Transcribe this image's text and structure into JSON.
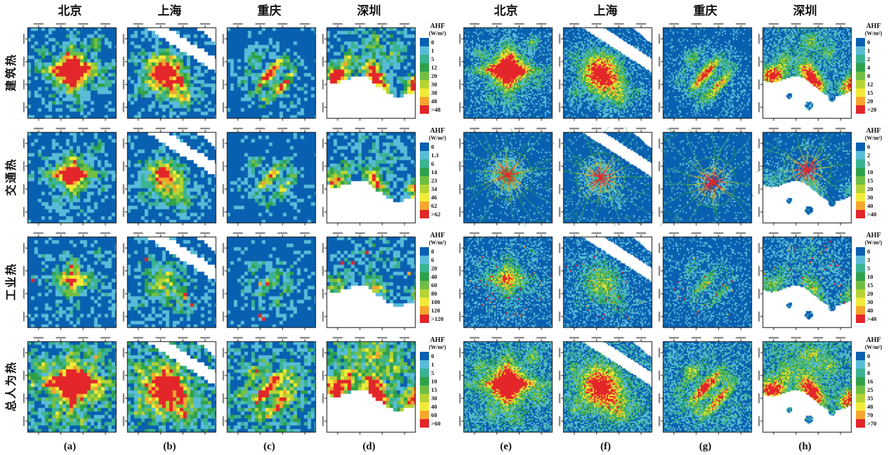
{
  "cities": [
    "北京",
    "上海",
    "重庆",
    "深圳"
  ],
  "row_labels": [
    "建筑热",
    "交通热",
    "工业热",
    "总人为热"
  ],
  "panel_letters": [
    "(a)",
    "(b)",
    "(c)",
    "(d)",
    "(e)",
    "(f)",
    "(g)",
    "(h)"
  ],
  "legend": {
    "title": "AHF",
    "unit": "(W/m²)"
  },
  "legends": {
    "left": [
      {
        "row": "建筑热",
        "values": [
          "0",
          "1",
          "5",
          "12",
          "20",
          "30",
          "38",
          "48",
          ">48"
        ]
      },
      {
        "row": "交通热",
        "values": [
          "0",
          "1.3",
          "6",
          "14",
          "23",
          "34",
          "46",
          "62",
          ">62"
        ]
      },
      {
        "row": "工业热",
        "values": [
          "0",
          "6",
          "20",
          "40",
          "60",
          "80",
          "100",
          "120",
          ">120"
        ]
      },
      {
        "row": "总人为热",
        "values": [
          "0",
          "1",
          "5",
          "10",
          "15",
          "30",
          "40",
          "60",
          ">60"
        ]
      }
    ],
    "right": [
      {
        "row": "建筑热",
        "values": [
          "0",
          "1",
          "2",
          "4",
          "8",
          "12",
          "15",
          "20",
          ">20"
        ]
      },
      {
        "row": "交通热",
        "values": [
          "0",
          "2",
          "5",
          "10",
          "15",
          "20",
          "30",
          "40",
          ">40"
        ]
      },
      {
        "row": "工业热",
        "values": [
          "0",
          "3",
          "5",
          "10",
          "15",
          "20",
          "30",
          "40",
          ">40"
        ]
      },
      {
        "row": "总人为热",
        "values": [
          "0",
          "3",
          "8",
          "16",
          "25",
          "35",
          "48",
          "70",
          ">70"
        ]
      }
    ]
  },
  "colors": {
    "ramp": [
      "#0a60b0",
      "#58bcd8",
      "#3ab392",
      "#2fa14a",
      "#70bf44",
      "#b5d334",
      "#f2ea38",
      "#f6a52e",
      "#e3262a"
    ],
    "nodata": "#ffffff",
    "map_border": "#111111"
  }
}
